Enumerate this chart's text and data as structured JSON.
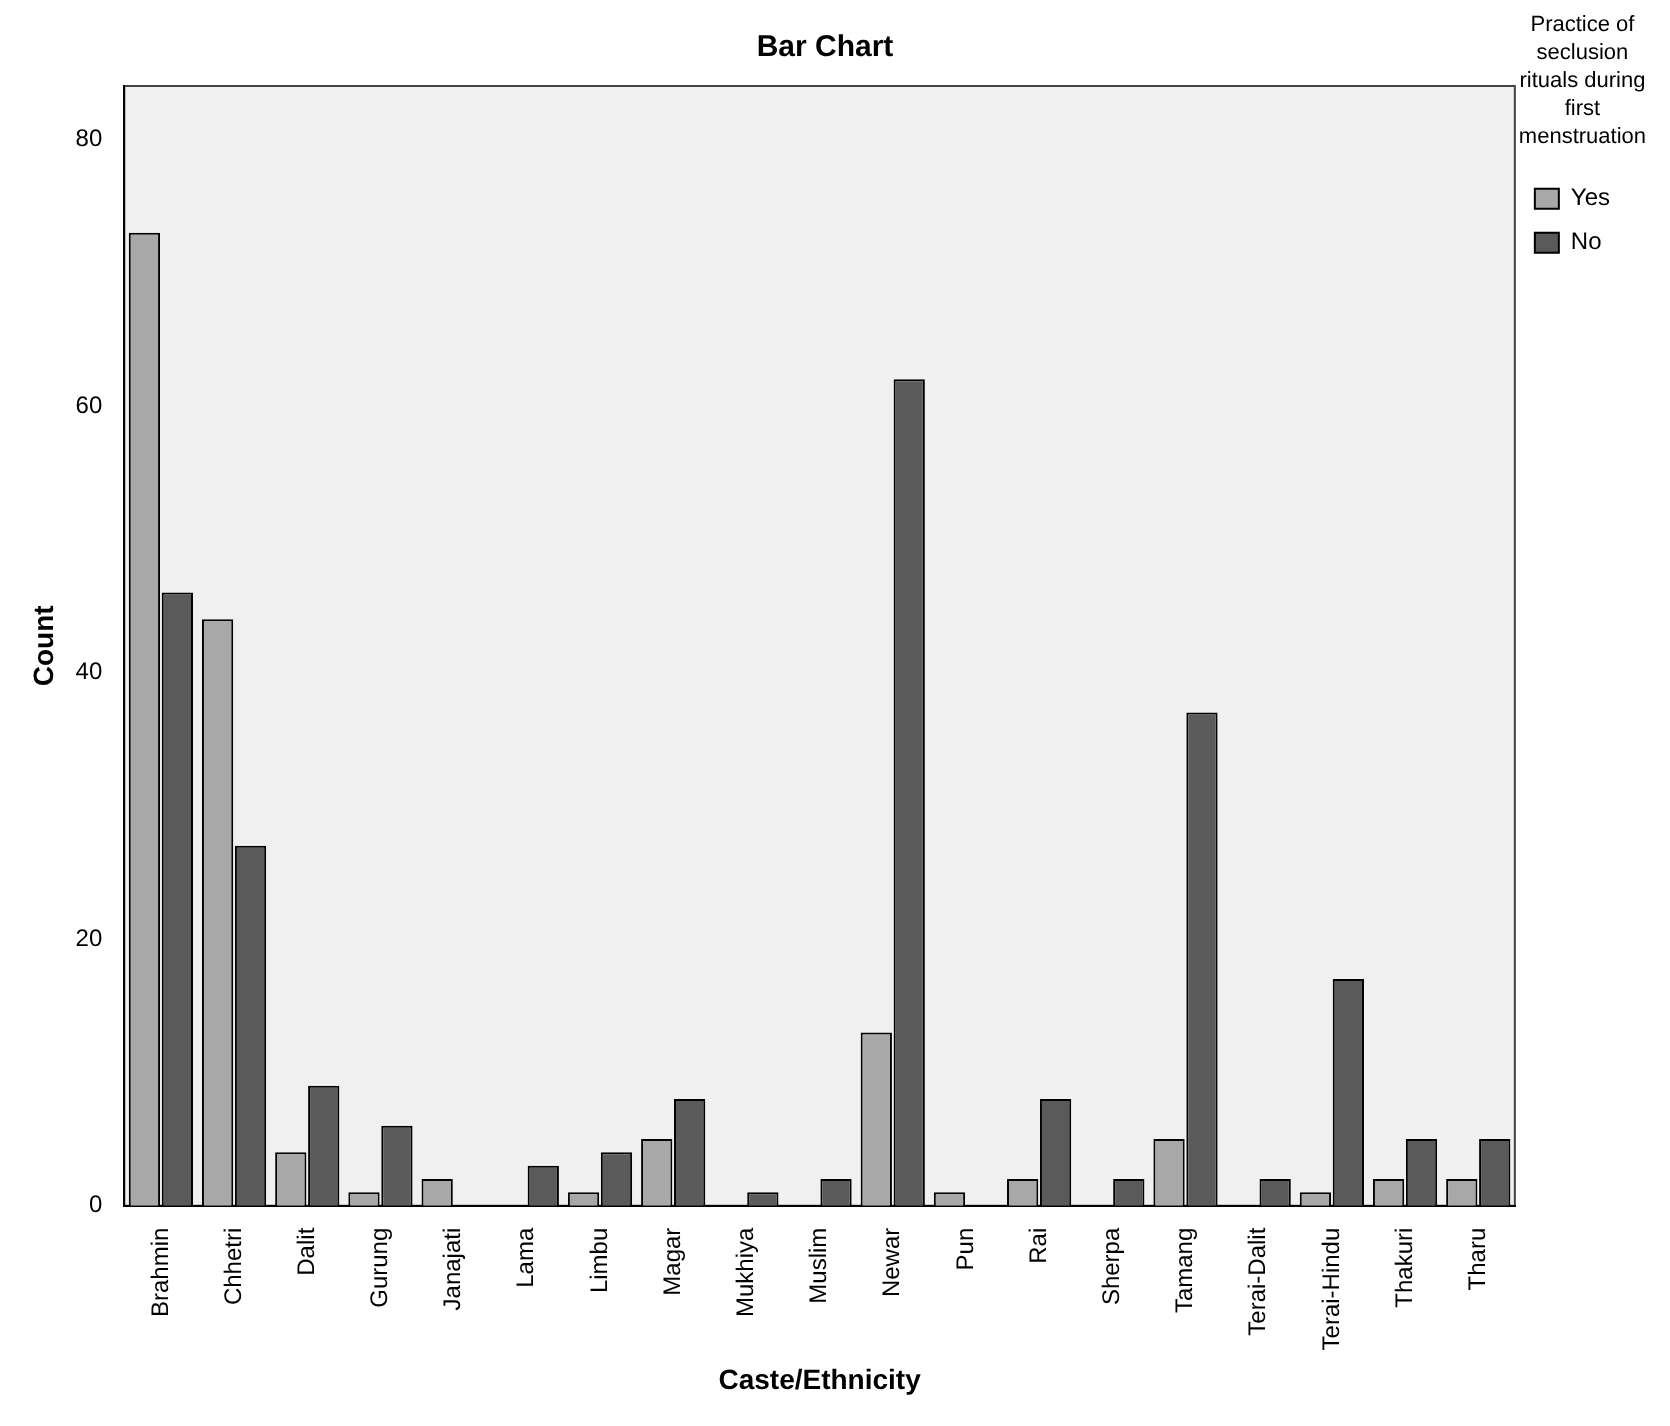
{
  "chart_data": {
    "type": "bar",
    "title": "Bar Chart",
    "xlabel": "Caste/Ethnicity",
    "ylabel": "Count",
    "legend_title": "Practice of seclusion rituals during first menstruation",
    "legend": "top right",
    "grid": false,
    "categories": [
      "Brahmin",
      "Chhetri",
      "Dalit",
      "Gurung",
      "Janajati",
      "Lama",
      "Limbu",
      "Magar",
      "Mukhiya",
      "Muslim",
      "Newar",
      "Pun",
      "Rai",
      "Sherpa",
      "Tamang",
      "Terai-Dalit",
      "Terai-Hindu",
      "Thakuri",
      "Tharu"
    ],
    "series": [
      {
        "name": "Yes",
        "color": "#a8a8a8",
        "values": [
          73,
          44,
          4,
          1,
          2,
          null,
          1,
          5,
          null,
          null,
          13,
          1,
          2,
          null,
          5,
          null,
          1,
          2,
          2
        ]
      },
      {
        "name": "No",
        "color": "#5a5a5a",
        "values": [
          46,
          27,
          9,
          6,
          null,
          3,
          4,
          8,
          1,
          2,
          62,
          null,
          8,
          2,
          37,
          2,
          17,
          5,
          5
        ]
      }
    ],
    "ylim": [
      0,
      84
    ],
    "yticks": [
      0,
      20,
      40,
      60,
      80
    ]
  }
}
